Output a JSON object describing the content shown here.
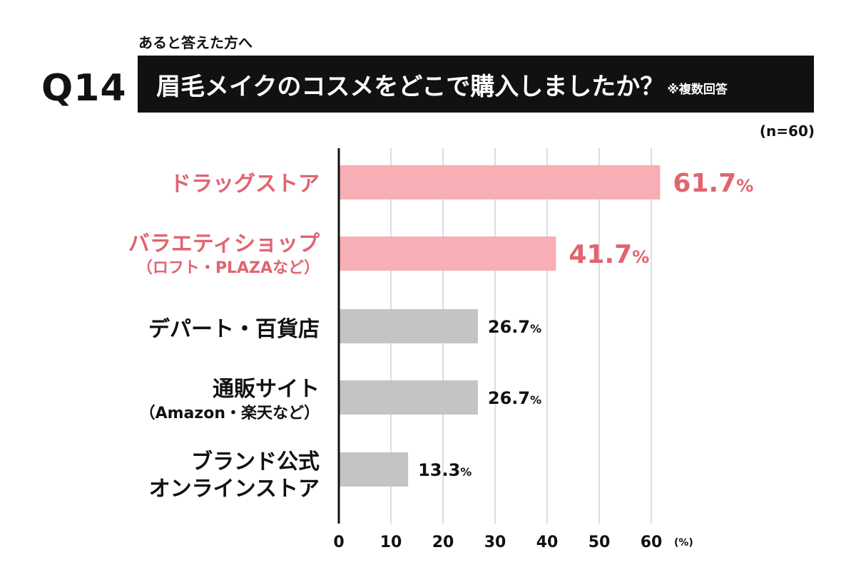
{
  "header": {
    "question_number": "Q14",
    "subtitle": "あると答えた方へ",
    "title": "眉毛メイクのコスメをどこで購入しましたか？",
    "note": "※複数回答",
    "sample_size": "(n=60)"
  },
  "categories_display": [
    {
      "main": "ドラッグストア",
      "sub": ""
    },
    {
      "main": "バラエティショップ",
      "sub": "（ロフト・PLAZAなど）"
    },
    {
      "main": "デパート・百貨店",
      "sub": ""
    },
    {
      "main": "通販サイト",
      "sub": "（Amazon・楽天など）"
    },
    {
      "main": "ブランド公式",
      "sub": "オンラインストア"
    }
  ],
  "value_labels": [
    "61.7",
    "41.7",
    "26.7",
    "26.7",
    "13.3"
  ],
  "percent_sign": "%",
  "colors": {
    "highlight_bar": "#f8aeb5",
    "highlight_text": "#e0656f",
    "normal_bar": "#c5c3c6",
    "normal_text": "#111111",
    "grid": "#c9d4e4",
    "axis": "#111111"
  },
  "chart_data": {
    "type": "bar",
    "orientation": "horizontal",
    "categories": [
      "ドラッグストア",
      "バラエティショップ（ロフト・PLAZAなど）",
      "デパート・百貨店",
      "通販サイト（Amazon・楽天など）",
      "ブランド公式オンラインストア"
    ],
    "values": [
      61.7,
      41.7,
      26.7,
      26.7,
      13.3
    ],
    "highlighted": [
      true,
      true,
      false,
      false,
      false
    ],
    "title": "眉毛メイクのコスメをどこで購入しましたか？",
    "xlabel": "(%)",
    "xlim": [
      0,
      60
    ],
    "xticks": [
      0,
      10,
      20,
      30,
      40,
      50,
      60
    ],
    "grid": true
  }
}
